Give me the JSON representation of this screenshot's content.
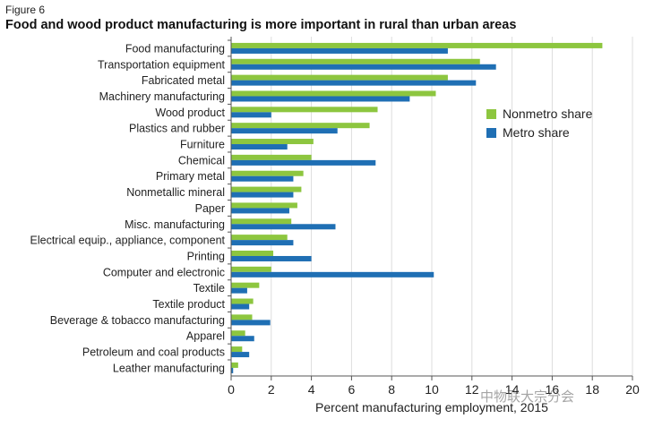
{
  "figure_label": "Figure 6",
  "title": "Food and wood product manufacturing is more important in rural than urban areas",
  "colors": {
    "nonmetro": "#8dc63f",
    "metro": "#1f6fb4",
    "axis": "#555555",
    "grid": "#dddddd"
  },
  "watermark": "中物联大宗分会",
  "chart_data": {
    "type": "bar",
    "orientation": "horizontal",
    "title": "Food and wood product manufacturing is more important in rural than urban areas",
    "xlabel": "Percent manufacturing employment, 2015",
    "ylabel": "",
    "xlim": [
      0,
      20
    ],
    "xticks": [
      "0",
      "2",
      "4",
      "6",
      "8",
      "10",
      "12",
      "14",
      "16",
      "18",
      "20"
    ],
    "legend_position": "right",
    "categories": [
      "Food manufacturing",
      "Transportation equipment",
      "Fabricated metal",
      "Machinery manufacturing",
      "Wood product",
      "Plastics and rubber",
      "Furniture",
      "Chemical",
      "Primary metal",
      "Nonmetallic mineral",
      "Paper",
      "Misc. manufacturing",
      "Electrical equip., appliance, component",
      "Printing",
      "Computer and electronic",
      "Textile",
      "Textile product",
      "Beverage & tobacco manufacturing",
      "Apparel",
      "Petroleum and coal products",
      "Leather manufacturing"
    ],
    "series": [
      {
        "name": "Nonmetro share",
        "values": [
          18.5,
          12.4,
          10.8,
          10.2,
          7.3,
          6.9,
          4.1,
          4.0,
          3.6,
          3.5,
          3.3,
          3.0,
          2.8,
          2.1,
          2.0,
          1.4,
          1.1,
          1.05,
          0.7,
          0.55,
          0.35
        ]
      },
      {
        "name": "Metro share",
        "values": [
          10.8,
          13.2,
          12.2,
          8.9,
          2.0,
          5.3,
          2.8,
          7.2,
          3.1,
          3.1,
          2.9,
          5.2,
          3.1,
          4.0,
          10.1,
          0.8,
          0.9,
          1.95,
          1.15,
          0.9,
          0.1
        ]
      }
    ]
  }
}
